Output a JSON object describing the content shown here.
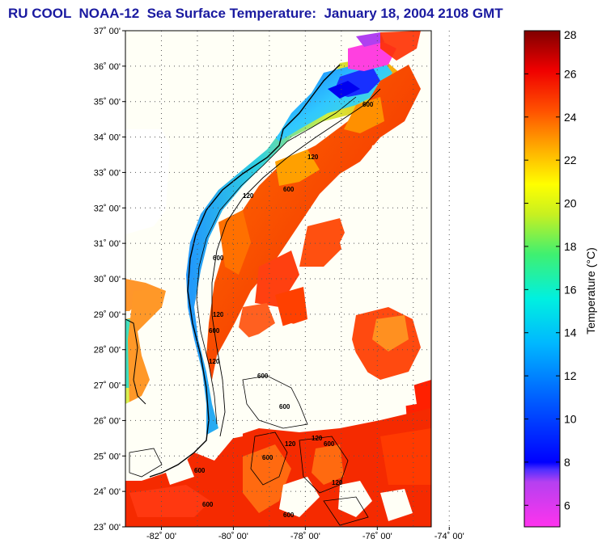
{
  "title": "RU COOL  NOAA-12  Sea Surface Temperature:  January 18, 2004 2108 GMT",
  "map": {
    "lat_labels": [
      "37˚ 00'",
      "36˚ 00'",
      "35˚ 00'",
      "34˚ 00'",
      "33˚ 00'",
      "32˚ 00'",
      "31˚ 00'",
      "30˚ 00'",
      "29˚ 00'",
      "28˚ 00'",
      "27˚ 00'",
      "26˚ 00'",
      "25˚ 00'",
      "24˚ 00'",
      "23˚ 00'"
    ],
    "lon_labels": [
      "-82˚ 00'",
      "-80˚ 00'",
      "-78˚ 00'",
      "-76˚ 00'",
      "-74˚ 00'"
    ],
    "lat_range": [
      23,
      37
    ],
    "lon_range": [
      -83,
      -74.5
    ],
    "contour_labels": [
      "600",
      "120",
      "600",
      "120",
      "600",
      "120",
      "600",
      "120",
      "600",
      "600",
      "120",
      "120",
      "600",
      "600",
      "600",
      "600",
      "600",
      "120"
    ]
  },
  "colorbar": {
    "label": "Temperature (°C)",
    "ticks": [
      "28",
      "26",
      "24",
      "22",
      "20",
      "18",
      "16",
      "14",
      "12",
      "10",
      "8",
      "6"
    ],
    "range": [
      5,
      28
    ]
  },
  "colors": {
    "title": "#1a1aa0",
    "land": "#fffff6"
  }
}
